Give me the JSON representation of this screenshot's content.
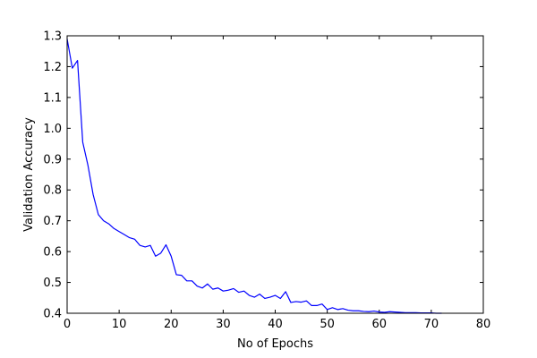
{
  "chart_data": {
    "type": "line",
    "title": "",
    "xlabel": "No of Epochs",
    "ylabel": "Validation Accuracy",
    "xlim": [
      0,
      80
    ],
    "ylim": [
      0.4,
      1.3
    ],
    "xticks": [
      0,
      10,
      20,
      30,
      40,
      50,
      60,
      70,
      80
    ],
    "yticks": [
      0.4,
      0.5,
      0.6,
      0.7,
      0.8,
      0.9,
      1.0,
      1.1,
      1.2,
      1.3
    ],
    "xtick_labels": [
      "0",
      "10",
      "20",
      "30",
      "40",
      "50",
      "60",
      "70",
      "80"
    ],
    "ytick_labels": [
      "0.4",
      "0.5",
      "0.6",
      "0.7",
      "0.8",
      "0.9",
      "1.0",
      "1.1",
      "1.2",
      "1.3"
    ],
    "grid": false,
    "legend": "none",
    "series": [
      {
        "color": "#0000ff",
        "x": [
          0,
          1,
          2,
          3,
          4,
          5,
          6,
          7,
          8,
          9,
          10,
          11,
          12,
          13,
          14,
          15,
          16,
          17,
          18,
          19,
          20,
          21,
          22,
          23,
          24,
          25,
          26,
          27,
          28,
          29,
          30,
          31,
          32,
          33,
          34,
          35,
          36,
          37,
          38,
          39,
          40,
          41,
          42,
          43,
          44,
          45,
          46,
          47,
          48,
          49,
          50,
          51,
          52,
          53,
          54,
          55,
          56,
          57,
          58,
          59,
          60,
          61,
          62,
          63,
          64,
          65,
          66,
          67,
          68,
          69,
          70,
          71,
          72
        ],
        "y": [
          1.29,
          1.195,
          1.22,
          0.955,
          0.88,
          0.785,
          0.72,
          0.7,
          0.69,
          0.675,
          0.665,
          0.655,
          0.645,
          0.64,
          0.62,
          0.615,
          0.62,
          0.585,
          0.595,
          0.622,
          0.585,
          0.525,
          0.523,
          0.505,
          0.505,
          0.488,
          0.482,
          0.495,
          0.478,
          0.482,
          0.472,
          0.475,
          0.48,
          0.468,
          0.472,
          0.458,
          0.452,
          0.462,
          0.448,
          0.452,
          0.458,
          0.448,
          0.47,
          0.435,
          0.438,
          0.436,
          0.44,
          0.425,
          0.425,
          0.43,
          0.412,
          0.418,
          0.412,
          0.415,
          0.41,
          0.408,
          0.408,
          0.406,
          0.405,
          0.407,
          0.404,
          0.403,
          0.405,
          0.404,
          0.403,
          0.402,
          0.402,
          0.402,
          0.401,
          0.401,
          0.401,
          0.4,
          0.4
        ]
      }
    ]
  }
}
